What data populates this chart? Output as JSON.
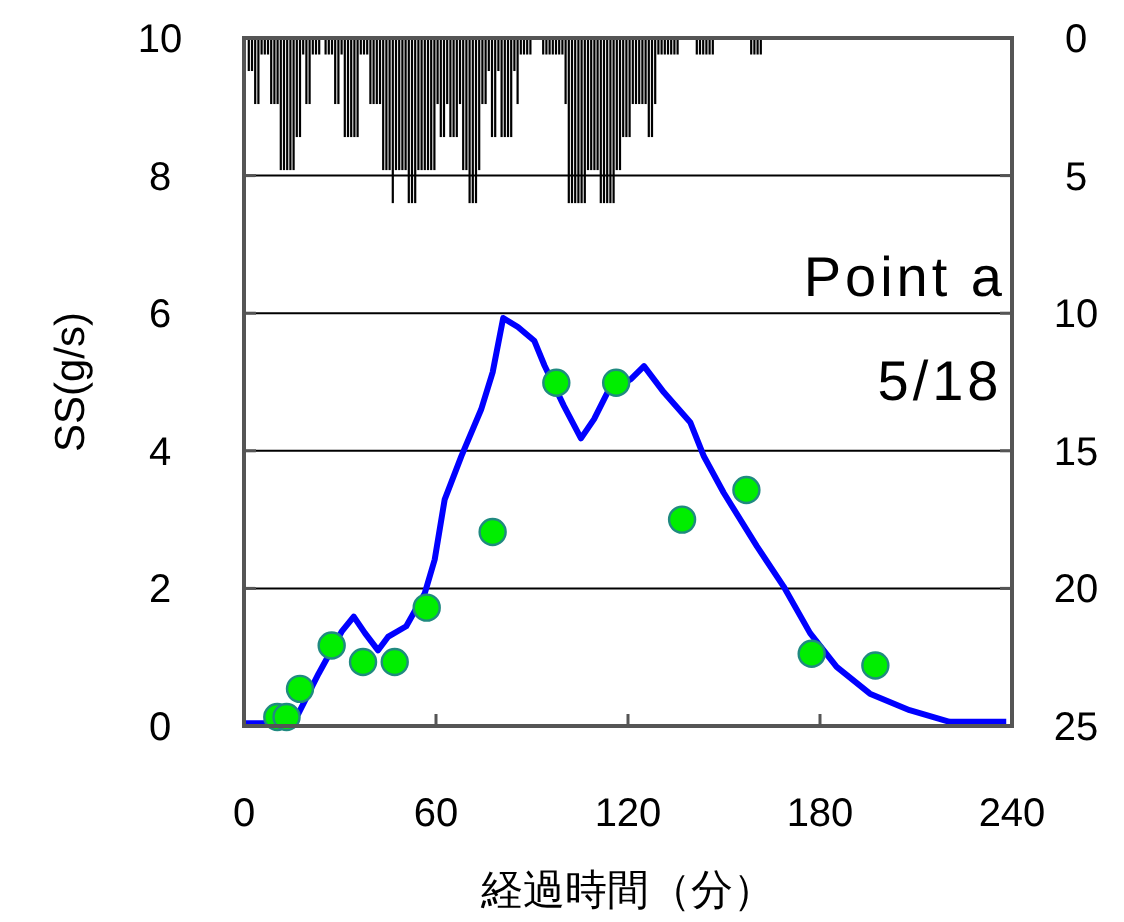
{
  "chart_data": {
    "type": "line",
    "xlabel": "経過時間（分）",
    "ylabel": "SS(g/s)",
    "annotations": [
      "Point a",
      "5/18"
    ],
    "xlim": [
      0,
      240
    ],
    "xticks": [
      0,
      60,
      120,
      180,
      240
    ],
    "ylim": [
      0,
      10
    ],
    "yticks": [
      0,
      2,
      4,
      6,
      8,
      10
    ],
    "y2lim": [
      25,
      0
    ],
    "y2ticks": [
      0,
      5,
      10,
      15,
      20,
      25
    ],
    "grid": "y",
    "series": [
      {
        "type": "bar",
        "axis": "y2",
        "color": "#000000",
        "x": [
          1.5,
          2.5,
          3.5,
          4.5,
          5.5,
          6.5,
          7.5,
          8.5,
          9.5,
          10.5,
          11.5,
          12.5,
          13.5,
          14.5,
          15.5,
          16.5,
          17.5,
          18.5,
          19.5,
          20.5,
          21.5,
          22.5,
          23.5,
          25.5,
          26.5,
          27.5,
          28.5,
          29.5,
          30.5,
          31.5,
          32.5,
          33.5,
          34.5,
          35.5,
          36.5,
          37.5,
          38.5,
          39.5,
          40.5,
          41.5,
          42.5,
          43.5,
          44.5,
          45.5,
          46.5,
          47.5,
          48.5,
          49.5,
          50.5,
          51.5,
          52.5,
          53.5,
          54.5,
          55.5,
          56.5,
          57.5,
          58.5,
          59.5,
          60.5,
          61.5,
          62.5,
          63.5,
          64.5,
          65.5,
          66.5,
          67.5,
          68.5,
          69.5,
          70.5,
          71.5,
          72.5,
          73.5,
          74.5,
          75.5,
          76.5,
          77.5,
          78.5,
          79.5,
          80.5,
          81.5,
          82.5,
          83.5,
          84.5,
          85.5,
          86.5,
          87.5,
          88.5,
          89.5,
          93.5,
          94.5,
          95.5,
          96.5,
          97.5,
          98.5,
          99.5,
          100.5,
          101.5,
          102.5,
          103.5,
          104.5,
          105.5,
          106.5,
          107.5,
          108.5,
          109.5,
          110.5,
          111.5,
          112.5,
          113.5,
          114.5,
          115.5,
          116.5,
          117.5,
          118.5,
          119.5,
          120.5,
          121.5,
          122.5,
          123.5,
          124.5,
          125.5,
          126.5,
          127.5,
          128.5,
          129.5,
          130.5,
          131.5,
          132.5,
          133.5,
          134.5,
          135.5,
          141.5,
          142.5,
          143.5,
          144.5,
          145.5,
          146.5,
          158.5,
          159.5,
          160.5,
          161.5
        ],
        "values": [
          1.2,
          1.2,
          2.4,
          2.4,
          0.6,
          0.6,
          0.6,
          2.4,
          2.4,
          2.4,
          4.8,
          4.8,
          4.8,
          4.8,
          4.8,
          3.6,
          3.6,
          0.6,
          2.4,
          2.4,
          0.6,
          0.6,
          0.6,
          0.6,
          0.6,
          0.6,
          2.4,
          2.4,
          0.6,
          3.6,
          3.6,
          3.6,
          3.6,
          3.6,
          0.6,
          0.6,
          0.6,
          2.4,
          2.4,
          2.4,
          2.4,
          4.8,
          4.8,
          4.8,
          6.0,
          4.8,
          4.8,
          4.8,
          4.8,
          6.0,
          6.0,
          6.0,
          4.8,
          4.8,
          4.8,
          4.8,
          4.8,
          4.8,
          2.4,
          3.6,
          3.6,
          2.4,
          3.6,
          3.6,
          3.6,
          2.4,
          4.8,
          4.8,
          6.0,
          6.0,
          6.0,
          4.8,
          2.4,
          2.4,
          1.2,
          3.6,
          3.6,
          1.2,
          3.6,
          3.6,
          3.6,
          3.6,
          1.2,
          2.4,
          0.6,
          0.6,
          0.6,
          0.6,
          0.6,
          0.6,
          0.6,
          0.6,
          0.6,
          0.6,
          0.6,
          2.4,
          6.0,
          6.0,
          6.0,
          6.0,
          6.0,
          6.0,
          4.8,
          4.8,
          4.8,
          4.8,
          6.0,
          6.0,
          6.0,
          6.0,
          6.0,
          4.8,
          4.8,
          3.6,
          3.6,
          3.6,
          2.4,
          2.4,
          2.4,
          2.4,
          2.4,
          3.6,
          3.6,
          2.4,
          0.6,
          0.6,
          0.6,
          0.6,
          0.6,
          0.6,
          0.6,
          0.6,
          0.6,
          0.6,
          0.6,
          0.6,
          0.6,
          0.6,
          0.6,
          0.6,
          0.6
        ]
      },
      {
        "color": "#0000ff",
        "marker": "none",
        "line_style": "solid",
        "x": [
          0.4,
          8.7,
          17,
          23.3,
          30.5,
          34.3,
          37.8,
          41.9,
          45.1,
          50.7,
          56.5,
          59.6,
          62.7,
          67.9,
          74.1,
          77.7,
          81,
          85.6,
          90.7,
          93.9,
          100,
          105.3,
          109.4,
          113.6,
          120.9,
          125,
          131.2,
          139.5,
          143.7,
          149.9,
          160.3,
          168.6,
          176.9,
          185.2,
          195.6,
          208,
          220.5,
          238.2
        ],
        "values": [
          0.04,
          0.04,
          0.18,
          0.76,
          1.37,
          1.59,
          1.35,
          1.1,
          1.3,
          1.45,
          1.93,
          2.42,
          3.29,
          3.92,
          4.6,
          5.14,
          5.93,
          5.8,
          5.6,
          5.24,
          4.65,
          4.18,
          4.46,
          4.85,
          5.04,
          5.23,
          4.85,
          4.41,
          3.92,
          3.39,
          2.61,
          2.03,
          1.35,
          0.86,
          0.47,
          0.23,
          0.06,
          0.06
        ]
      },
      {
        "type": "scatter",
        "color": "#00ee00",
        "marker": "circle",
        "x": [
          10.4,
          13.3,
          17.5,
          27.4,
          37.2,
          47.1,
          57.1,
          77.7,
          97.6,
          116.3,
          136.9,
          157,
          177.4,
          197.3
        ],
        "values": [
          0.13,
          0.13,
          0.54,
          1.17,
          0.93,
          0.93,
          1.72,
          2.82,
          4.99,
          4.99,
          3.0,
          3.43,
          1.05,
          0.88
        ]
      }
    ]
  }
}
